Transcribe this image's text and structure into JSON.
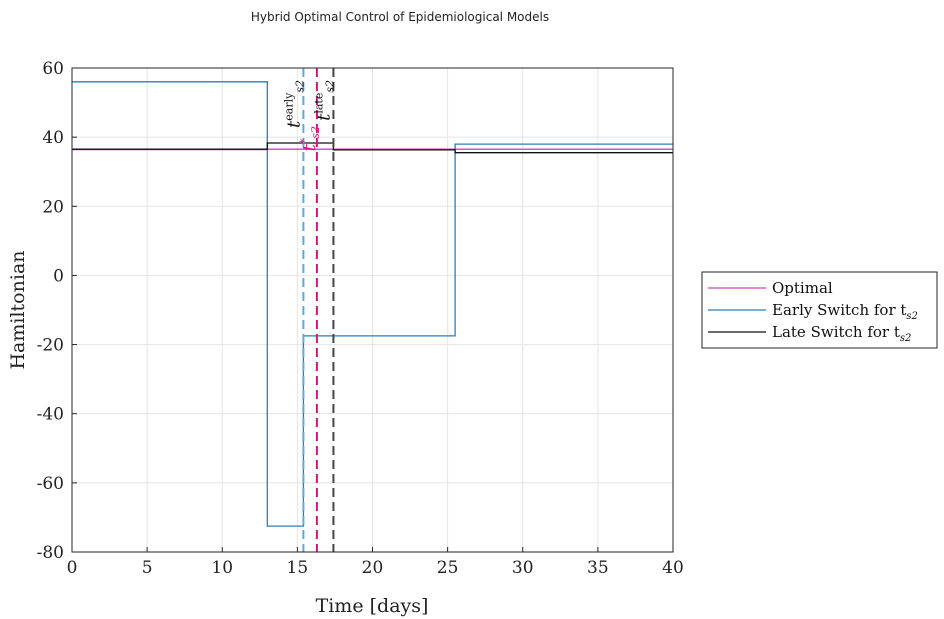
{
  "chart_data": {
    "type": "line",
    "title": "Hybrid Optimal Control of Epidemiological Models",
    "xlabel": "Time [days]",
    "ylabel": "Hamiltonian",
    "xlim": [
      0,
      40
    ],
    "ylim": [
      -80,
      60
    ],
    "xticks": [
      "0",
      "5",
      "10",
      "15",
      "20",
      "25",
      "30",
      "35",
      "40"
    ],
    "yticks": [
      "-80",
      "-60",
      "-40",
      "-20",
      "0",
      "20",
      "40",
      "60"
    ],
    "grid": true,
    "legend_position": "outside-right",
    "series": [
      {
        "name": "Optimal",
        "name_sub": "",
        "color": "#cc44bb",
        "x": [
          0,
          13.0,
          13.0,
          16.3,
          16.3,
          17.4,
          17.4,
          25.5,
          25.5,
          40
        ],
        "y": [
          36.4,
          36.4,
          36.5,
          36.5,
          36.5,
          36.5,
          36.5,
          36.5,
          36.5,
          36.5
        ]
      },
      {
        "name": "Early Switch for t",
        "name_sub": "s2",
        "color": "#2a7fb8",
        "x": [
          0,
          13.0,
          13.0,
          15.4,
          15.4,
          25.5,
          25.5,
          40
        ],
        "y": [
          56.0,
          56.0,
          -72.5,
          -72.5,
          -17.5,
          -17.5,
          38.0,
          38.0
        ]
      },
      {
        "name": "Late Switch for t",
        "name_sub": "s2",
        "color": "#111111",
        "x": [
          0,
          13.0,
          13.0,
          17.4,
          17.4,
          25.5,
          25.5,
          40
        ],
        "y": [
          36.5,
          36.5,
          38.3,
          38.3,
          36.3,
          36.3,
          35.5,
          35.5
        ]
      }
    ],
    "vlines": [
      {
        "x": 15.4,
        "color": "#5fa8d8",
        "label_main": "t",
        "label_sup": "early",
        "label_sub": "s2"
      },
      {
        "x": 16.3,
        "color": "#d6157f",
        "label_main": "t",
        "label_sup": "*",
        "label_sub": "s2"
      },
      {
        "x": 17.4,
        "color": "#444444",
        "label_main": "t",
        "label_sup": "late",
        "label_sub": "s2"
      }
    ]
  }
}
